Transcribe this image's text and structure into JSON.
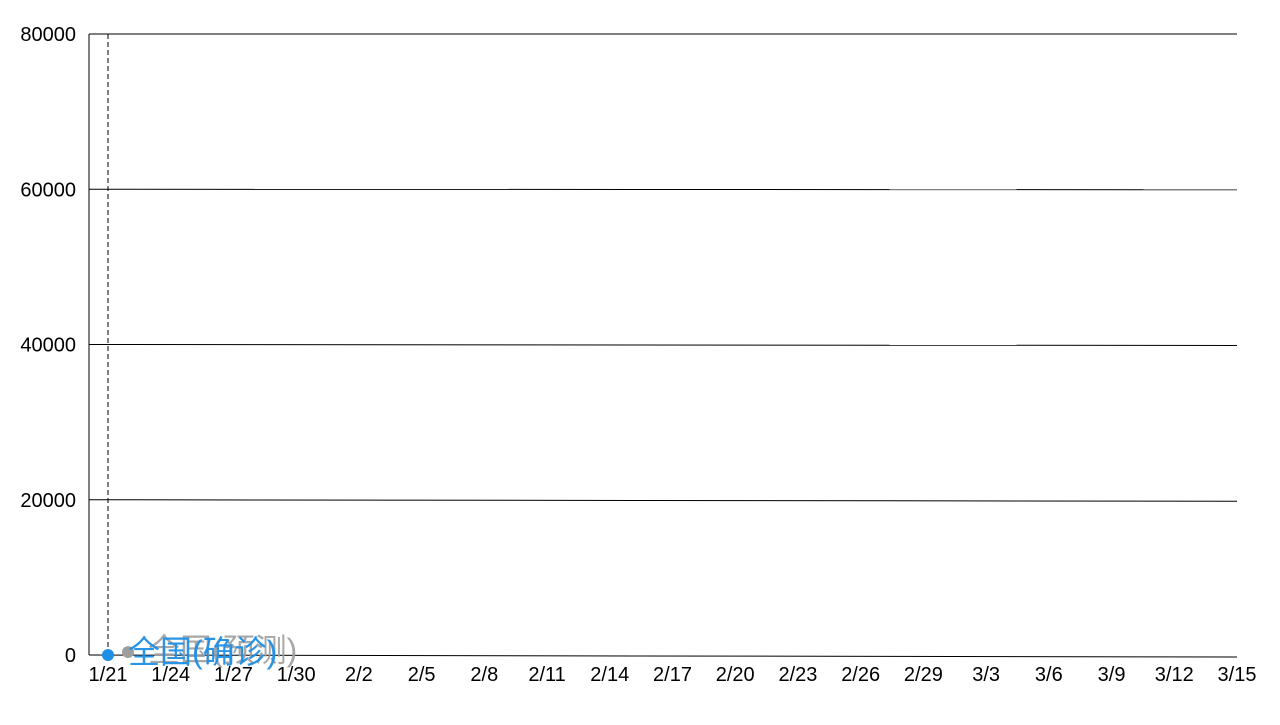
{
  "chart_data": {
    "type": "line",
    "title": "",
    "xlabel": "",
    "ylabel": "",
    "x_ticks": [
      "1/21",
      "1/24",
      "1/27",
      "1/30",
      "2/2",
      "2/5",
      "2/8",
      "2/11",
      "2/14",
      "2/17",
      "2/20",
      "2/23",
      "2/26",
      "2/29",
      "3/3",
      "3/6",
      "3/9",
      "3/12",
      "3/15"
    ],
    "ylim": [
      0,
      80000
    ],
    "y_ticks": [
      0,
      20000,
      40000,
      60000,
      80000
    ],
    "grid": true,
    "series": [
      {
        "name": "全国(预测)",
        "color": "#9e9e9e",
        "points": [
          {
            "x": "1/21",
            "y": 0
          }
        ]
      },
      {
        "name": "全国(确诊)",
        "color": "#1f8fe6",
        "points": [
          {
            "x": "1/21",
            "y": 0
          }
        ]
      }
    ],
    "cursor_x": "1/21"
  }
}
